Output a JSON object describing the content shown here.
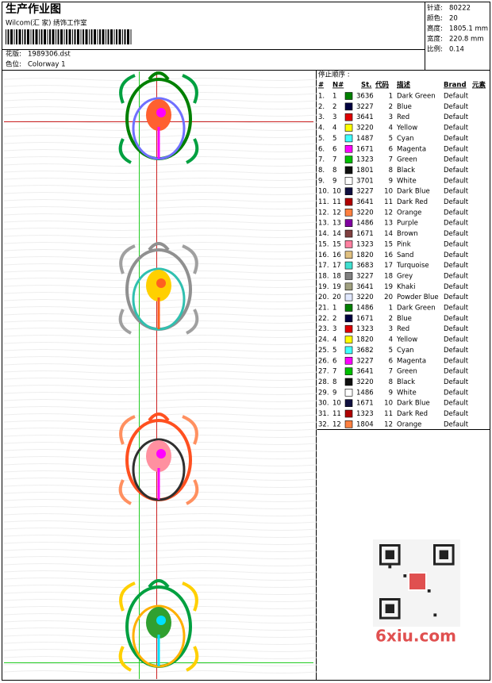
{
  "header": {
    "title": "生产作业图",
    "studio": "Wilcom(汇 家) 绣饰工作室",
    "design_label": "花版:",
    "design": "1989306.dst",
    "colorway_label": "色位:",
    "colorway": "Colorway 1"
  },
  "info": [
    {
      "label": "针迹:",
      "value": "80222"
    },
    {
      "label": "颜色:",
      "value": "20"
    },
    {
      "label": "高度:",
      "value": "1805.1 mm"
    },
    {
      "label": "宽度:",
      "value": "220.8 mm"
    },
    {
      "label": "比例:",
      "value": "0.14"
    }
  ],
  "table": {
    "caption": "停止顺序 :",
    "columns": [
      "#",
      "N#",
      "St.",
      "代码",
      "描述",
      "Brand",
      "元素"
    ],
    "rows": [
      [
        "1.",
        "1",
        "3636",
        "1",
        "Dark Green",
        "Default"
      ],
      [
        "2.",
        "2",
        "3227",
        "2",
        "Blue",
        "Default"
      ],
      [
        "3.",
        "3",
        "3641",
        "3",
        "Red",
        "Default"
      ],
      [
        "4.",
        "4",
        "3220",
        "4",
        "Yellow",
        "Default"
      ],
      [
        "5.",
        "5",
        "1487",
        "5",
        "Cyan",
        "Default"
      ],
      [
        "6.",
        "6",
        "1671",
        "6",
        "Magenta",
        "Default"
      ],
      [
        "7.",
        "7",
        "1323",
        "7",
        "Green",
        "Default"
      ],
      [
        "8.",
        "8",
        "1801",
        "8",
        "Black",
        "Default"
      ],
      [
        "9.",
        "9",
        "3701",
        "9",
        "White",
        "Default"
      ],
      [
        "10.",
        "10",
        "3227",
        "10",
        "Dark Blue",
        "Default"
      ],
      [
        "11.",
        "11",
        "3641",
        "11",
        "Dark Red",
        "Default"
      ],
      [
        "12.",
        "12",
        "3220",
        "12",
        "Orange",
        "Default"
      ],
      [
        "13.",
        "13",
        "1486",
        "13",
        "Purple",
        "Default"
      ],
      [
        "14.",
        "14",
        "1671",
        "14",
        "Brown",
        "Default"
      ],
      [
        "15.",
        "15",
        "1323",
        "15",
        "Pink",
        "Default"
      ],
      [
        "16.",
        "16",
        "1820",
        "16",
        "Sand",
        "Default"
      ],
      [
        "17.",
        "17",
        "3683",
        "17",
        "Turquoise",
        "Default"
      ],
      [
        "18.",
        "18",
        "3227",
        "18",
        "Grey",
        "Default"
      ],
      [
        "19.",
        "19",
        "3641",
        "19",
        "Khaki",
        "Default"
      ],
      [
        "20.",
        "20",
        "3220",
        "20",
        "Powder Blue",
        "Default"
      ],
      [
        "21.",
        "1",
        "1486",
        "1",
        "Dark Green",
        "Default"
      ],
      [
        "22.",
        "2",
        "1671",
        "2",
        "Blue",
        "Default"
      ],
      [
        "23.",
        "3",
        "1323",
        "3",
        "Red",
        "Default"
      ],
      [
        "24.",
        "4",
        "1820",
        "4",
        "Yellow",
        "Default"
      ],
      [
        "25.",
        "5",
        "3682",
        "5",
        "Cyan",
        "Default"
      ],
      [
        "26.",
        "6",
        "3227",
        "6",
        "Magenta",
        "Default"
      ],
      [
        "27.",
        "7",
        "3641",
        "7",
        "Green",
        "Default"
      ],
      [
        "28.",
        "8",
        "3220",
        "8",
        "Black",
        "Default"
      ],
      [
        "29.",
        "9",
        "1486",
        "9",
        "White",
        "Default"
      ],
      [
        "30.",
        "10",
        "1671",
        "10",
        "Dark Blue",
        "Default"
      ],
      [
        "31.",
        "11",
        "1323",
        "11",
        "Dark Red",
        "Default"
      ],
      [
        "32.",
        "12",
        "1804",
        "12",
        "Orange",
        "Default"
      ]
    ],
    "swatches": [
      "#008000",
      "#000040",
      "#e00000",
      "#ffff00",
      "#40ffff",
      "#ff00ff",
      "#00c000",
      "#101010",
      "#ffffff",
      "#101040",
      "#b00000",
      "#ff8040",
      "#8000a0",
      "#804040",
      "#ff80a0",
      "#e0c080",
      "#40e0d0",
      "#808080",
      "#a0a080",
      "#e0e8ff",
      "#008000",
      "#000040",
      "#e00000",
      "#ffff00",
      "#40ffff",
      "#ff00ff",
      "#00c000",
      "#101010",
      "#ffffff",
      "#101040",
      "#b00000",
      "#ff8040"
    ]
  },
  "watermark": "6xiu.com"
}
